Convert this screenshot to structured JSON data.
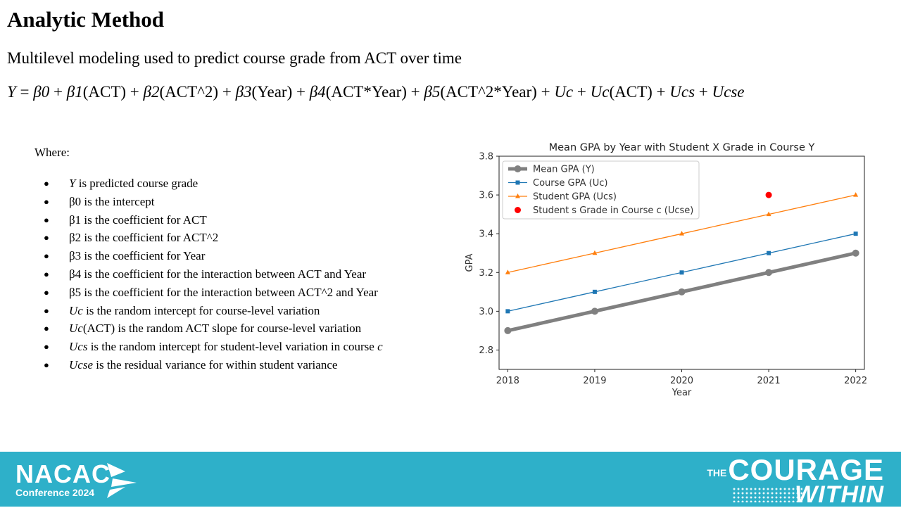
{
  "page": {
    "title": "Analytic Method",
    "subtitle": "Multilevel modeling used to predict course grade from ACT over time",
    "equation": [
      {
        "t": "Y",
        "i": true
      },
      {
        "t": " = ",
        "i": false
      },
      {
        "t": "β0",
        "i": true
      },
      {
        "t": " + ",
        "i": false
      },
      {
        "t": "β1",
        "i": true
      },
      {
        "t": "(ACT) + ",
        "i": false
      },
      {
        "t": "β2",
        "i": true
      },
      {
        "t": "(ACT^2) + ",
        "i": false
      },
      {
        "t": "β3",
        "i": true
      },
      {
        "t": "(Year) + ",
        "i": false
      },
      {
        "t": "β4",
        "i": true
      },
      {
        "t": "(ACT*Year) + ",
        "i": false
      },
      {
        "t": "β5",
        "i": true
      },
      {
        "t": "(ACT^2*Year) + ",
        "i": false
      },
      {
        "t": "Uc",
        "i": true
      },
      {
        "t": " + ",
        "i": false
      },
      {
        "t": "Uc",
        "i": true
      },
      {
        "t": "(ACT) + ",
        "i": false
      },
      {
        "t": "Ucs",
        "i": true
      },
      {
        "t": " + ",
        "i": false
      },
      {
        "t": "Ucse",
        "i": true
      }
    ],
    "where_label": "Where:",
    "bullet_char": "●",
    "bullets": [
      [
        {
          "t": "Y",
          "i": true
        },
        {
          "t": " is predicted course grade",
          "i": false
        }
      ],
      [
        {
          "t": "β0 is the intercept",
          "i": false
        }
      ],
      [
        {
          "t": "β1 is the coefficient for ACT",
          "i": false
        }
      ],
      [
        {
          "t": "β2 is the coefficient for ACT^2",
          "i": false
        }
      ],
      [
        {
          "t": "β3 is the coefficient for Year",
          "i": false
        }
      ],
      [
        {
          "t": "β4 is the coefficient for the interaction between ACT and Year",
          "i": false
        }
      ],
      [
        {
          "t": "β5 is the coefficient for the interaction between ACT^2 and Year",
          "i": false
        }
      ],
      [
        {
          "t": "Uc",
          "i": true
        },
        {
          "t": " is the random intercept for course-level variation",
          "i": false
        }
      ],
      [
        {
          "t": "Uc",
          "i": true
        },
        {
          "t": "(ACT) is the random ACT slope for course-level variation",
          "i": false
        }
      ],
      [
        {
          "t": "Ucs",
          "i": true
        },
        {
          "t": " is the random intercept for student-level variation in course ",
          "i": false
        },
        {
          "t": "c",
          "i": true
        }
      ],
      [
        {
          "t": "Ucse",
          "i": true
        },
        {
          "t": " is the residual variance for within student variance",
          "i": false
        }
      ]
    ]
  },
  "footer": {
    "left_brand": "NACAC",
    "left_sub": "Conference 2024",
    "right_the": "THE",
    "right_main": "COURAGE",
    "right_sub": "WITHIN"
  },
  "chart_data": {
    "type": "line",
    "title": "Mean GPA by Year with Student X Grade in Course Y",
    "xlabel": "Year",
    "ylabel": "GPA",
    "x": [
      2018,
      2019,
      2020,
      2021,
      2022
    ],
    "xlim": [
      2017.9,
      2022.1
    ],
    "ylim": [
      2.7,
      3.8
    ],
    "yticks": [
      2.8,
      3.0,
      3.2,
      3.4,
      3.6,
      3.8
    ],
    "ytick_labels": [
      "2.8",
      "3.0",
      "3.2",
      "3.4",
      "3.6",
      "3.8"
    ],
    "xtick_labels": [
      "2018",
      "2019",
      "2020",
      "2021",
      "2022"
    ],
    "grid": false,
    "legend_position": "upper-left",
    "series": [
      {
        "name": "Mean GPA (Y)",
        "values": [
          2.9,
          3.0,
          3.1,
          3.2,
          3.3
        ],
        "color": "#808080",
        "marker": "circle",
        "style": "thick"
      },
      {
        "name": "Course GPA (Uc)",
        "values": [
          3.0,
          3.1,
          3.2,
          3.3,
          3.4
        ],
        "color": "#1f77b4",
        "marker": "square",
        "style": "normal"
      },
      {
        "name": "Student GPA (Ucs)",
        "values": [
          3.2,
          3.3,
          3.4,
          3.5,
          3.6
        ],
        "color": "#ff7f0e",
        "marker": "triangle",
        "style": "normal"
      }
    ],
    "points": [
      {
        "name": "Student s Grade in Course c (Ucse)",
        "x": 2021,
        "y": 3.6,
        "color": "#ff0000"
      }
    ]
  }
}
